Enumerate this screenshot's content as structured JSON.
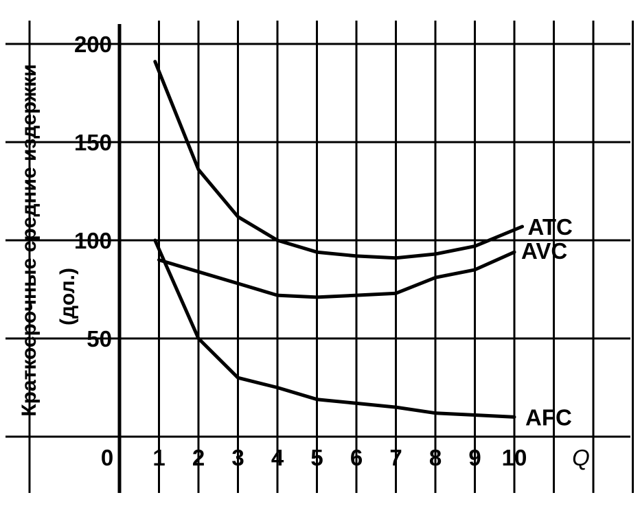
{
  "chart_data": {
    "type": "line",
    "ylabel": "Краткосрочные средние издержки",
    "ylabel_unit": "(дол.)",
    "xlabel": "Q",
    "origin_label": "0",
    "xlim": [
      0,
      10
    ],
    "ylim": [
      0,
      200
    ],
    "x_ticks": [
      "1",
      "2",
      "3",
      "4",
      "5",
      "6",
      "7",
      "8",
      "9",
      "10"
    ],
    "y_ticks": [
      "50",
      "100",
      "150",
      "200"
    ],
    "grid": true,
    "series": [
      {
        "name": "ATC",
        "x": [
          0.9,
          2,
          3,
          4,
          5,
          6,
          7,
          8,
          9,
          10.2
        ],
        "y": [
          191,
          136,
          112,
          100,
          94,
          92,
          91,
          93,
          97,
          107
        ]
      },
      {
        "name": "AVC",
        "x": [
          1,
          2,
          3,
          4,
          5,
          6,
          7,
          8,
          9,
          10
        ],
        "y": [
          90,
          84,
          78,
          72,
          71,
          72,
          73,
          81,
          85,
          94
        ]
      },
      {
        "name": "AFC",
        "x": [
          0.9,
          2,
          3,
          4,
          5,
          6,
          7,
          8,
          9,
          10
        ],
        "y": [
          100,
          50,
          30,
          25,
          19,
          17,
          15,
          12,
          11,
          10
        ]
      }
    ]
  }
}
